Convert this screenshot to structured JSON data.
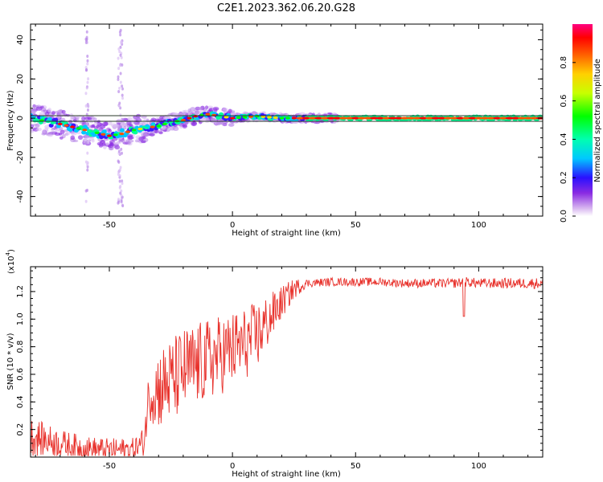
{
  "title": "C2E1.2023.362.06.20.G28",
  "colors": {
    "snr_line": "#e8322c",
    "axis": "#000000",
    "ridge": "#2a3a2a"
  },
  "colorbar": {
    "label": "Normalized spectral amplitude",
    "ticks": [
      "0.0",
      "0.2",
      "0.4",
      "0.6",
      "0.8"
    ],
    "tick_values": [
      0.0,
      0.2,
      0.4,
      0.6,
      0.8
    ],
    "range": [
      0.0,
      1.0
    ]
  },
  "chart_data": [
    {
      "type": "heatmap",
      "name": "spectrogram",
      "xlabel": "Height of straight line (km)",
      "ylabel": "Frequency (Hz)",
      "xlim": [
        -82,
        126
      ],
      "ylim": [
        -50,
        48
      ],
      "xticks": [
        -50,
        0,
        50,
        100
      ],
      "xtick_labels": [
        "-50",
        "0",
        "50",
        "100"
      ],
      "yticks": [
        -40,
        -20,
        0,
        20,
        40
      ],
      "ytick_labels": [
        "-40",
        "-20",
        "0",
        "20",
        "40"
      ],
      "ridge_band_hz": [
        -1.5,
        1.5
      ],
      "ridge_centerline": {
        "x": [
          -82,
          -70,
          -60,
          -50,
          -45,
          -40,
          -35,
          -30,
          -25,
          -20,
          -15,
          -10,
          -5,
          0,
          10,
          20,
          30,
          50,
          90,
          126
        ],
        "y": [
          0,
          -3,
          -6,
          -9,
          -8,
          -6,
          -5,
          -4,
          -2,
          -1,
          1,
          2,
          1,
          0,
          1,
          0,
          0,
          0,
          0,
          0
        ]
      }
    },
    {
      "type": "line",
      "name": "snr",
      "xlabel": "Height of straight line (km)",
      "ylabel": "SNR (10 * v/v)",
      "scale_label": "(x10",
      "scale_exponent": "4",
      "xlim": [
        -82,
        126
      ],
      "ylim": [
        0.0,
        1.38
      ],
      "xticks": [
        -50,
        0,
        50,
        100
      ],
      "xtick_labels": [
        "-50",
        "0",
        "50",
        "100"
      ],
      "yticks": [
        0.2,
        0.4,
        0.6,
        0.8,
        1.0,
        1.2
      ],
      "ytick_labels": [
        "0.2",
        "0.4",
        "0.6",
        "0.8",
        "1.0",
        "1.2"
      ],
      "trend": {
        "x": [
          -82,
          -75,
          -70,
          -60,
          -50,
          -40,
          -36,
          -34,
          -30,
          -25,
          -20,
          -15,
          -10,
          -5,
          0,
          5,
          10,
          15,
          20,
          25,
          30,
          40,
          50,
          60,
          70,
          80,
          90,
          95,
          100,
          110,
          126
        ],
        "y": [
          0.15,
          0.12,
          0.1,
          0.06,
          0.05,
          0.06,
          0.1,
          0.45,
          0.5,
          0.55,
          0.62,
          0.66,
          0.7,
          0.74,
          0.78,
          0.82,
          0.88,
          1.0,
          1.12,
          1.22,
          1.26,
          1.27,
          1.27,
          1.27,
          1.26,
          1.26,
          1.26,
          1.27,
          1.26,
          1.26,
          1.26
        ]
      },
      "noise_amplitude": {
        "x": [
          -82,
          -70,
          -40,
          -36,
          -30,
          -20,
          -10,
          0,
          10,
          20,
          30,
          60,
          126
        ],
        "y": [
          0.14,
          0.1,
          0.08,
          0.12,
          0.3,
          0.32,
          0.3,
          0.28,
          0.25,
          0.12,
          0.03,
          0.03,
          0.04
        ]
      },
      "dips": [
        {
          "x": 94,
          "y": 1.02
        }
      ]
    }
  ]
}
